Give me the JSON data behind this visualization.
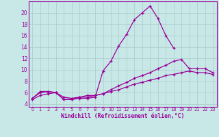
{
  "bg_color": "#c8e8e8",
  "grid_color": "#b0d0d0",
  "line_color": "#990099",
  "xlabel": "Windchill (Refroidissement éolien,°C)",
  "xlim": [
    -0.5,
    23.5
  ],
  "ylim": [
    3.5,
    22.0
  ],
  "yticks": [
    4,
    6,
    8,
    10,
    12,
    14,
    16,
    18,
    20
  ],
  "xticks": [
    0,
    1,
    2,
    3,
    4,
    5,
    6,
    7,
    8,
    9,
    10,
    11,
    12,
    13,
    14,
    15,
    16,
    17,
    18,
    19,
    20,
    21,
    22,
    23
  ],
  "line1_x": [
    0,
    1,
    2,
    3,
    4,
    5,
    6,
    7,
    8,
    9,
    10,
    11,
    12,
    13,
    14,
    15,
    16,
    17,
    18
  ],
  "line1_y": [
    5.0,
    6.2,
    6.2,
    6.0,
    4.8,
    4.8,
    5.0,
    5.0,
    5.2,
    9.8,
    11.5,
    14.2,
    16.2,
    18.8,
    20.0,
    21.2,
    19.0,
    16.0,
    13.8
  ],
  "line2_x": [
    0,
    1,
    2,
    3,
    4,
    5,
    6,
    7,
    8,
    9,
    10,
    11,
    12,
    13,
    14,
    15,
    16,
    17,
    18,
    19,
    20,
    21,
    22,
    23
  ],
  "line2_y": [
    5.0,
    6.0,
    6.2,
    6.0,
    4.8,
    4.8,
    5.2,
    5.2,
    5.5,
    5.8,
    6.5,
    7.2,
    7.8,
    8.5,
    9.0,
    9.5,
    10.2,
    10.8,
    11.5,
    11.8,
    10.2,
    10.2,
    10.2,
    9.5
  ],
  "line3_x": [
    0,
    1,
    2,
    3,
    4,
    5,
    6,
    7,
    8,
    9,
    10,
    11,
    12,
    13,
    14,
    15,
    16,
    17,
    18,
    19,
    20,
    21,
    22,
    23
  ],
  "line3_y": [
    4.8,
    5.5,
    5.8,
    6.0,
    5.2,
    5.0,
    5.2,
    5.5,
    5.5,
    5.8,
    6.2,
    6.5,
    7.0,
    7.5,
    7.8,
    8.2,
    8.5,
    9.0,
    9.2,
    9.5,
    9.8,
    9.5,
    9.5,
    9.2
  ]
}
